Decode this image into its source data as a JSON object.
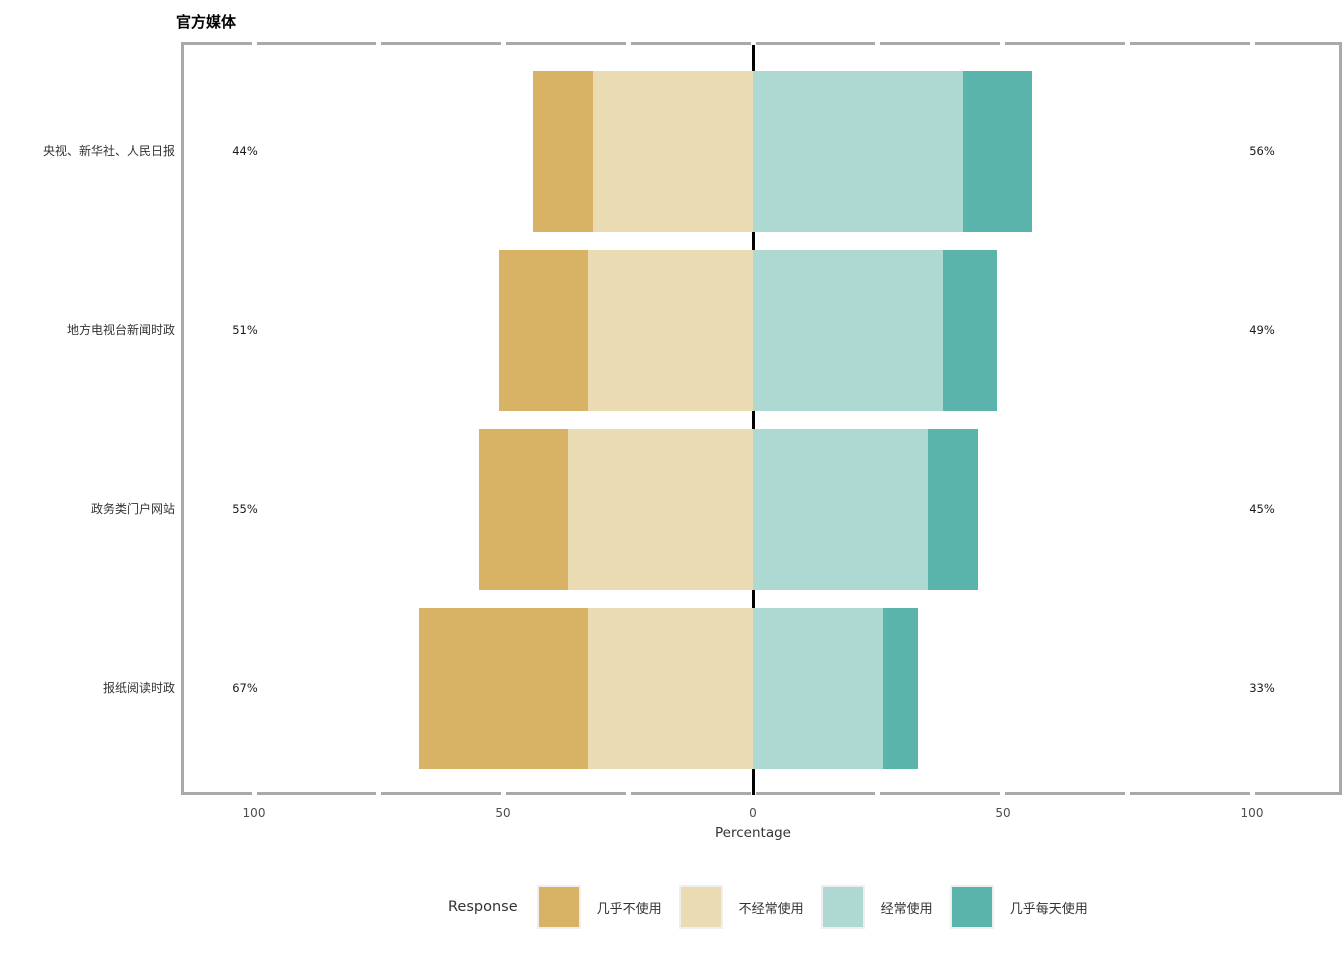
{
  "chart_data": {
    "type": "bar",
    "variant": "diverging-stacked-likert-horizontal",
    "title": "官方媒体",
    "xlabel": "Percentage",
    "x_axis": {
      "tick_labels": [
        "100",
        "50",
        "0",
        "50",
        "100"
      ],
      "tick_values": [
        -100,
        -50,
        0,
        50,
        100
      ],
      "minor_tick_step": 25,
      "range": [
        -115,
        118
      ],
      "zero_reference_line": true
    },
    "categories": [
      {
        "label": "央视、新华社、人民日报",
        "left_total": "44%",
        "right_total": "56%"
      },
      {
        "label": "地方电视台新闻时政",
        "left_total": "51%",
        "right_total": "49%"
      },
      {
        "label": "政务类门户网站",
        "left_total": "55%",
        "right_total": "45%"
      },
      {
        "label": "报纸阅读时政",
        "left_total": "67%",
        "right_total": "33%"
      }
    ],
    "series": [
      {
        "name": "几乎不使用",
        "color": "#d8b365",
        "side": "left-outer",
        "values": [
          12,
          18,
          18,
          34
        ]
      },
      {
        "name": "不经常使用",
        "color": "#eadbb3",
        "side": "left-inner",
        "values": [
          32,
          33,
          37,
          33
        ]
      },
      {
        "name": "经常使用",
        "color": "#aed8d2",
        "side": "right-inner",
        "values": [
          42,
          38,
          35,
          26
        ]
      },
      {
        "name": "几乎每天使用",
        "color": "#5ab4ac",
        "side": "right-outer",
        "values": [
          14,
          11,
          10,
          7
        ]
      }
    ],
    "legend": {
      "title": "Response",
      "position": "bottom",
      "items": [
        "几乎不使用",
        "不经常使用",
        "经常使用",
        "几乎每天使用"
      ]
    },
    "colors": {
      "panel_border": "#a9a9a9",
      "zero_line": "#000000",
      "background": "#ffffff"
    }
  }
}
